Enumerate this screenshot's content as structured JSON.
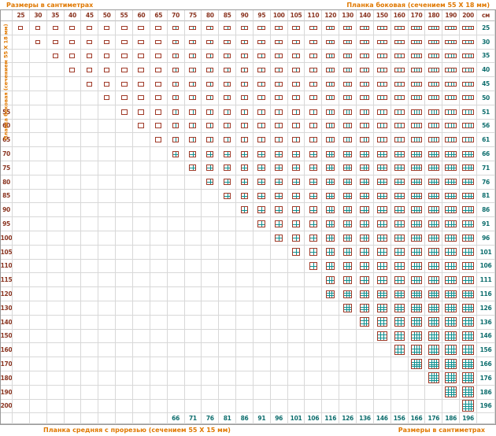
{
  "captions": {
    "top_left": "Размеры в сантиметрах",
    "top_right": "Планка боковая (сечением 55 X 18 мм)",
    "left_vertical": "Планка боковая (сечением 55 X 18 мм)",
    "bottom_left": "Планка средняя с прорезью (сечением 55 X 15 мм)",
    "bottom_right": "Размеры в сантиметрах",
    "unit": "см"
  },
  "colors": {
    "caption_orange": "#E07800",
    "side_plank_text": "#8A3420",
    "middle_plank_text": "#0E6E6E",
    "icon_border": "#A03A28",
    "icon_bars": "#0E8F8F",
    "grid_line": "#D8D8D8"
  },
  "chart_data": {
    "type": "table",
    "columns_cm": [
      25,
      30,
      35,
      40,
      45,
      50,
      55,
      60,
      65,
      70,
      75,
      80,
      85,
      90,
      95,
      100,
      105,
      110,
      120,
      130,
      140,
      150,
      160,
      170,
      180,
      190,
      200
    ],
    "rows_cm": [
      25,
      30,
      35,
      40,
      45,
      50,
      55,
      60,
      65,
      70,
      75,
      80,
      85,
      90,
      95,
      100,
      105,
      110,
      115,
      120,
      130,
      140,
      150,
      160,
      170,
      180,
      190,
      200
    ],
    "left_row_labels": [
      "",
      "",
      "",
      "",
      "",
      "",
      "55",
      "60",
      "65",
      "70",
      "75",
      "80",
      "85",
      "90",
      "95",
      "100",
      "105",
      "110",
      "115",
      "120",
      "130",
      "140",
      "150",
      "160",
      "170",
      "180",
      "190",
      "200"
    ],
    "right_column_values": [
      "25",
      "30",
      "35",
      "40",
      "45",
      "50",
      "51",
      "56",
      "61",
      "66",
      "71",
      "76",
      "81",
      "86",
      "91",
      "96",
      "101",
      "106",
      "111",
      "116",
      "126",
      "136",
      "146",
      "156",
      "166",
      "176",
      "186",
      "196"
    ],
    "bottom_row_values": [
      "",
      "",
      "",
      "",
      "",
      "",
      "",
      "",
      "",
      "66",
      "71",
      "76",
      "81",
      "86",
      "91",
      "96",
      "101",
      "106",
      "116",
      "126",
      "136",
      "146",
      "156",
      "166",
      "176",
      "186",
      "196"
    ],
    "cell_fill_rule": "frame icon shown when column value >= row value",
    "vertical_bar_thresholds_cm": [
      70,
      120,
      170
    ],
    "horizontal_bar_thresholds_cm": [
      70,
      120,
      170
    ]
  }
}
